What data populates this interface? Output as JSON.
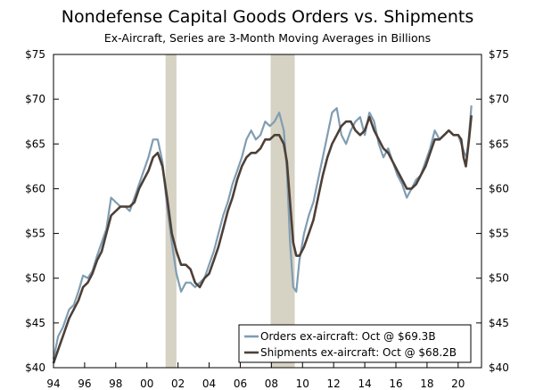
{
  "chart_data": {
    "type": "line",
    "title": "Nondefense Capital Goods Orders vs. Shipments",
    "subtitle": "Ex-Aircraft, Series are 3-Month Moving Averages in Billions",
    "xlabel": "",
    "ylabel": "",
    "xlim": [
      1994.0,
      2021.5
    ],
    "ylim": [
      40,
      75
    ],
    "y_ticks": [
      40,
      45,
      50,
      55,
      60,
      65,
      70,
      75
    ],
    "y_tick_labels": [
      "$40",
      "$45",
      "$50",
      "$55",
      "$60",
      "$65",
      "$70",
      "$75"
    ],
    "x_ticks": [
      1994,
      1996,
      1998,
      2000,
      2002,
      2004,
      2006,
      2008,
      2010,
      2012,
      2014,
      2016,
      2018,
      2020
    ],
    "x_tick_labels": [
      "94",
      "96",
      "98",
      "00",
      "02",
      "04",
      "06",
      "08",
      "10",
      "12",
      "14",
      "16",
      "18",
      "20"
    ],
    "recessions": [
      {
        "start": 2001.2,
        "end": 2001.9
      },
      {
        "start": 2007.95,
        "end": 2009.5
      }
    ],
    "colors": {
      "orders": "#7f9db3",
      "shipments": "#4d3f37",
      "recession": "#d6d2c4",
      "frame": "#000000"
    },
    "legend": {
      "placement": "bottom-right",
      "entries": [
        "Orders ex-aircraft: Oct @ $69.3B",
        "Shipments ex-aircraft: Oct @ $68.2B"
      ]
    },
    "series": [
      {
        "name": "Orders ex-aircraft",
        "key": "orders",
        "points": [
          [
            1994.0,
            41.0
          ],
          [
            1994.3,
            43.5
          ],
          [
            1994.6,
            44.5
          ],
          [
            1995.0,
            46.5
          ],
          [
            1995.3,
            47.0
          ],
          [
            1995.6,
            48.5
          ],
          [
            1995.9,
            50.3
          ],
          [
            1996.2,
            50.0
          ],
          [
            1996.5,
            50.8
          ],
          [
            1996.8,
            52.5
          ],
          [
            1997.1,
            54.0
          ],
          [
            1997.4,
            55.5
          ],
          [
            1997.7,
            59.0
          ],
          [
            1998.0,
            58.5
          ],
          [
            1998.3,
            58.0
          ],
          [
            1998.6,
            58.0
          ],
          [
            1998.9,
            57.5
          ],
          [
            1999.2,
            59.0
          ],
          [
            1999.5,
            60.5
          ],
          [
            1999.8,
            62.0
          ],
          [
            2000.1,
            63.5
          ],
          [
            2000.4,
            65.5
          ],
          [
            2000.7,
            65.5
          ],
          [
            2001.0,
            63.0
          ],
          [
            2001.3,
            58.0
          ],
          [
            2001.6,
            54.0
          ],
          [
            2001.9,
            50.5
          ],
          [
            2002.2,
            48.5
          ],
          [
            2002.5,
            49.5
          ],
          [
            2002.8,
            49.5
          ],
          [
            2003.1,
            49.0
          ],
          [
            2003.4,
            49.5
          ],
          [
            2003.7,
            50.0
          ],
          [
            2004.0,
            51.5
          ],
          [
            2004.3,
            53.0
          ],
          [
            2004.6,
            55.0
          ],
          [
            2004.9,
            57.0
          ],
          [
            2005.2,
            58.5
          ],
          [
            2005.5,
            60.5
          ],
          [
            2005.8,
            62.0
          ],
          [
            2006.1,
            63.5
          ],
          [
            2006.4,
            65.5
          ],
          [
            2006.7,
            66.5
          ],
          [
            2007.0,
            65.5
          ],
          [
            2007.3,
            66.0
          ],
          [
            2007.6,
            67.5
          ],
          [
            2007.9,
            67.0
          ],
          [
            2008.2,
            67.5
          ],
          [
            2008.5,
            68.5
          ],
          [
            2008.8,
            66.5
          ],
          [
            2009.0,
            62.0
          ],
          [
            2009.2,
            54.0
          ],
          [
            2009.4,
            49.0
          ],
          [
            2009.6,
            48.5
          ],
          [
            2009.8,
            52.0
          ],
          [
            2010.1,
            55.0
          ],
          [
            2010.4,
            57.0
          ],
          [
            2010.7,
            58.5
          ],
          [
            2011.0,
            61.0
          ],
          [
            2011.3,
            63.5
          ],
          [
            2011.6,
            66.0
          ],
          [
            2011.9,
            68.5
          ],
          [
            2012.2,
            69.0
          ],
          [
            2012.5,
            66.0
          ],
          [
            2012.8,
            65.0
          ],
          [
            2013.1,
            66.5
          ],
          [
            2013.4,
            67.5
          ],
          [
            2013.7,
            68.0
          ],
          [
            2014.0,
            66.0
          ],
          [
            2014.3,
            68.5
          ],
          [
            2014.6,
            67.5
          ],
          [
            2014.9,
            65.0
          ],
          [
            2015.2,
            63.5
          ],
          [
            2015.5,
            64.5
          ],
          [
            2015.8,
            63.0
          ],
          [
            2016.1,
            61.5
          ],
          [
            2016.4,
            60.5
          ],
          [
            2016.7,
            59.0
          ],
          [
            2017.0,
            60.0
          ],
          [
            2017.3,
            61.0
          ],
          [
            2017.6,
            61.5
          ],
          [
            2017.9,
            63.0
          ],
          [
            2018.2,
            64.5
          ],
          [
            2018.5,
            66.5
          ],
          [
            2018.8,
            65.5
          ],
          [
            2019.1,
            66.0
          ],
          [
            2019.4,
            66.5
          ],
          [
            2019.7,
            66.0
          ],
          [
            2020.0,
            66.0
          ],
          [
            2020.2,
            65.0
          ],
          [
            2020.4,
            64.0
          ],
          [
            2020.55,
            63.5
          ],
          [
            2020.7,
            66.0
          ],
          [
            2020.85,
            69.3
          ]
        ]
      },
      {
        "name": "Shipments ex-aircraft",
        "key": "shipments",
        "points": [
          [
            1994.0,
            40.5
          ],
          [
            1994.3,
            42.0
          ],
          [
            1994.6,
            43.5
          ],
          [
            1995.0,
            45.5
          ],
          [
            1995.3,
            46.5
          ],
          [
            1995.6,
            47.5
          ],
          [
            1995.9,
            49.0
          ],
          [
            1996.2,
            49.5
          ],
          [
            1996.5,
            50.5
          ],
          [
            1996.8,
            52.0
          ],
          [
            1997.1,
            53.0
          ],
          [
            1997.4,
            55.0
          ],
          [
            1997.7,
            57.0
          ],
          [
            1998.0,
            57.5
          ],
          [
            1998.3,
            58.0
          ],
          [
            1998.6,
            58.0
          ],
          [
            1998.9,
            58.0
          ],
          [
            1999.2,
            58.5
          ],
          [
            1999.5,
            60.0
          ],
          [
            1999.8,
            61.0
          ],
          [
            2000.1,
            62.0
          ],
          [
            2000.4,
            63.5
          ],
          [
            2000.7,
            64.0
          ],
          [
            2001.0,
            62.5
          ],
          [
            2001.3,
            59.0
          ],
          [
            2001.6,
            55.0
          ],
          [
            2001.9,
            53.0
          ],
          [
            2002.2,
            51.5
          ],
          [
            2002.5,
            51.5
          ],
          [
            2002.8,
            51.0
          ],
          [
            2003.1,
            49.5
          ],
          [
            2003.4,
            49.0
          ],
          [
            2003.7,
            50.0
          ],
          [
            2004.0,
            50.5
          ],
          [
            2004.3,
            52.0
          ],
          [
            2004.6,
            53.5
          ],
          [
            2004.9,
            55.5
          ],
          [
            2005.2,
            57.5
          ],
          [
            2005.5,
            59.0
          ],
          [
            2005.8,
            61.0
          ],
          [
            2006.1,
            62.5
          ],
          [
            2006.4,
            63.5
          ],
          [
            2006.7,
            64.0
          ],
          [
            2007.0,
            64.0
          ],
          [
            2007.3,
            64.5
          ],
          [
            2007.6,
            65.5
          ],
          [
            2007.9,
            65.5
          ],
          [
            2008.2,
            66.0
          ],
          [
            2008.5,
            66.0
          ],
          [
            2008.8,
            65.0
          ],
          [
            2009.0,
            63.0
          ],
          [
            2009.2,
            58.5
          ],
          [
            2009.4,
            54.0
          ],
          [
            2009.6,
            52.5
          ],
          [
            2009.8,
            52.5
          ],
          [
            2010.1,
            53.5
          ],
          [
            2010.4,
            55.0
          ],
          [
            2010.7,
            56.5
          ],
          [
            2011.0,
            59.0
          ],
          [
            2011.3,
            61.5
          ],
          [
            2011.6,
            63.5
          ],
          [
            2011.9,
            65.0
          ],
          [
            2012.2,
            66.0
          ],
          [
            2012.5,
            67.0
          ],
          [
            2012.8,
            67.5
          ],
          [
            2013.1,
            67.5
          ],
          [
            2013.4,
            66.5
          ],
          [
            2013.7,
            66.0
          ],
          [
            2014.0,
            66.5
          ],
          [
            2014.3,
            68.0
          ],
          [
            2014.6,
            66.5
          ],
          [
            2014.9,
            65.5
          ],
          [
            2015.2,
            64.5
          ],
          [
            2015.5,
            64.0
          ],
          [
            2015.8,
            63.0
          ],
          [
            2016.1,
            62.0
          ],
          [
            2016.4,
            61.0
          ],
          [
            2016.7,
            60.0
          ],
          [
            2017.0,
            60.0
          ],
          [
            2017.3,
            60.5
          ],
          [
            2017.6,
            61.5
          ],
          [
            2017.9,
            62.5
          ],
          [
            2018.2,
            64.0
          ],
          [
            2018.5,
            65.5
          ],
          [
            2018.8,
            65.5
          ],
          [
            2019.1,
            66.0
          ],
          [
            2019.4,
            66.5
          ],
          [
            2019.7,
            66.0
          ],
          [
            2020.0,
            66.0
          ],
          [
            2020.2,
            65.5
          ],
          [
            2020.35,
            63.5
          ],
          [
            2020.5,
            62.5
          ],
          [
            2020.7,
            65.5
          ],
          [
            2020.85,
            68.2
          ]
        ]
      }
    ]
  }
}
